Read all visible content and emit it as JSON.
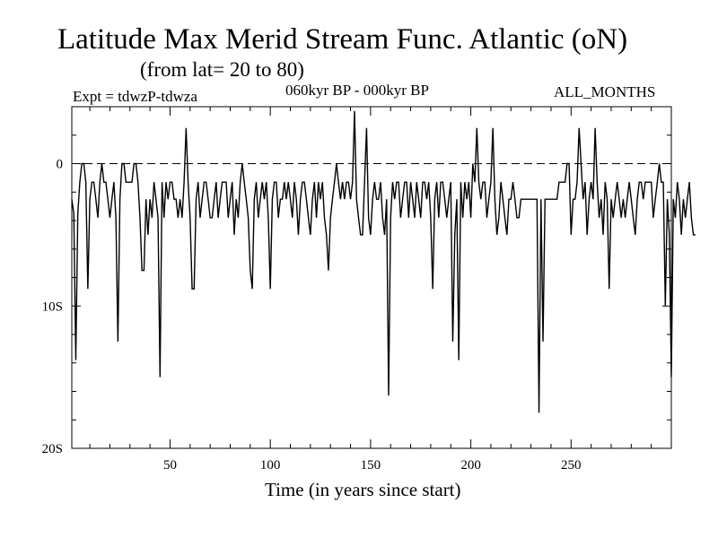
{
  "header": {
    "title": "Latitude Max Merid Stream Func. Atlantic (oN)",
    "subtitle": "(from lat= 20 to 80)",
    "experiment": "Expt = tdwzP-tdwza",
    "period": "060kyr BP - 000kyr BP",
    "months": "ALL_MONTHS"
  },
  "chart_data": {
    "type": "line",
    "title": "Latitude Max Merid Stream Func. Atlantic (oN)",
    "xlabel": "Time (in years since start)",
    "ylabel": "",
    "xlim": [
      1,
      300
    ],
    "ylim": [
      -20,
      4
    ],
    "x_ticks": [
      50,
      100,
      150,
      200,
      250
    ],
    "y_ticks": [
      {
        "value": 0,
        "label": "0"
      },
      {
        "value": -10,
        "label": "10S"
      },
      {
        "value": -20,
        "label": "20S"
      }
    ],
    "reference_line": {
      "y": 0,
      "style": "dashed"
    },
    "grid": false,
    "color": "#000000",
    "x_start": 1,
    "x_step": 1,
    "series": [
      {
        "values": [
          -2.5,
          -3.5,
          -13.8,
          -3.5,
          -1.3,
          0,
          0,
          -1.3,
          -8.8,
          -2.5,
          -1.3,
          -1.3,
          -2.5,
          -3.8,
          -1.3,
          0,
          -1.3,
          -1.3,
          -2.5,
          -3.8,
          -2.5,
          -1.3,
          -3.8,
          -12.5,
          -2.5,
          0,
          0,
          -1.3,
          -1.3,
          -1.3,
          -1.3,
          0,
          0,
          -1.3,
          -3.8,
          -7.5,
          -7.5,
          -2.5,
          -5.0,
          -2.5,
          -3.8,
          -1.3,
          -2.5,
          -3.8,
          -15.0,
          -1.3,
          -3.8,
          -1.3,
          -2.5,
          -1.3,
          -1.3,
          -2.5,
          -2.5,
          -3.8,
          -2.5,
          -3.8,
          -1.3,
          2.5,
          -1.3,
          -3.8,
          -8.8,
          -8.8,
          -2.5,
          -1.3,
          -3.8,
          -2.5,
          -1.3,
          -1.3,
          -2.5,
          -3.8,
          -3.8,
          -2.5,
          -1.3,
          -3.8,
          -2.5,
          -1.3,
          -1.3,
          -1.3,
          -3.8,
          -2.5,
          -1.3,
          -5.0,
          -2.5,
          -3.8,
          -1.3,
          0,
          -1.3,
          -2.5,
          -3.8,
          -7.5,
          -8.8,
          -2.5,
          -1.3,
          -3.8,
          -2.5,
          -1.3,
          -2.5,
          -1.3,
          -3.8,
          -8.8,
          -2.5,
          -1.3,
          -1.3,
          -3.8,
          -2.5,
          -2.5,
          -1.3,
          -2.5,
          -1.3,
          -2.5,
          -3.8,
          -1.3,
          -2.5,
          -5.0,
          -2.5,
          -1.3,
          -1.3,
          -2.5,
          -3.8,
          -5.0,
          -2.5,
          -1.3,
          -3.8,
          -1.3,
          -2.5,
          -1.3,
          -3.8,
          -5.0,
          -7.5,
          -3.8,
          -2.5,
          -1.3,
          0,
          -1.3,
          -2.5,
          -1.3,
          -2.5,
          -1.3,
          -1.3,
          -2.5,
          -1.3,
          3.7,
          -2.5,
          -3.8,
          -5.0,
          -5.0,
          -1.3,
          2.5,
          -3.8,
          -5.0,
          -2.5,
          -1.3,
          -2.5,
          -2.5,
          -1.3,
          -3.8,
          -5.0,
          -2.5,
          -16.3,
          -3.8,
          -1.3,
          -2.5,
          -1.3,
          -1.3,
          -3.8,
          -2.5,
          -1.3,
          -1.3,
          -3.8,
          -1.3,
          -2.5,
          -3.8,
          -1.3,
          -2.5,
          -3.8,
          -1.3,
          -1.3,
          -2.5,
          -1.3,
          -3.8,
          -8.8,
          -2.5,
          -1.3,
          -3.8,
          -1.3,
          -1.3,
          -2.5,
          -3.8,
          -2.5,
          -1.3,
          -12.5,
          -5.0,
          -2.5,
          -13.8,
          -1.3,
          -3.8,
          -1.3,
          -2.5,
          -1.3,
          -3.8,
          0,
          -1.3,
          2.5,
          -1.3,
          -2.5,
          -1.3,
          -1.3,
          -3.8,
          -2.5,
          -1.3,
          2.5,
          -2.5,
          -5.0,
          -3.8,
          -1.3,
          -2.5,
          -3.8,
          -5.0,
          -2.5,
          -2.5,
          -1.3,
          -2.5,
          -3.8,
          -3.8,
          -2.5,
          -2.5,
          -2.5,
          -2.5,
          -2.5,
          -2.5,
          -2.5,
          -2.5,
          -2.5,
          -17.5,
          -2.5,
          -12.5,
          -2.5,
          -2.5,
          -2.5,
          -2.5,
          -2.5,
          -2.5,
          -2.5,
          -1.3,
          -1.3,
          -1.3,
          -1.3,
          0,
          0,
          -5.0,
          -2.5,
          -2.5,
          -1.3,
          2.5,
          0,
          -2.5,
          -1.3,
          -5.0,
          -2.5,
          -1.3,
          -2.5,
          2.5,
          -1.3,
          -3.8,
          -2.5,
          -5.0,
          -1.3,
          -2.5,
          -8.8,
          -2.5,
          -3.8,
          -2.5,
          -1.3,
          -2.5,
          -3.8,
          -2.5,
          -3.8,
          -2.5,
          -1.3,
          -2.5,
          -3.8,
          -5.0,
          -2.5,
          -1.3,
          -1.3,
          -2.5,
          -1.3,
          -1.3,
          -1.3,
          -1.3,
          -3.8,
          -2.5,
          -1.3,
          0,
          -1.3,
          -1.3,
          -10.0,
          -2.5,
          -5.0,
          -15.0,
          -2.5,
          -3.8,
          -1.3,
          -2.5,
          -5.0,
          -2.5,
          -3.8,
          -2.5,
          -1.3,
          -3.8,
          -5.0,
          -5.0
        ]
      }
    ]
  }
}
